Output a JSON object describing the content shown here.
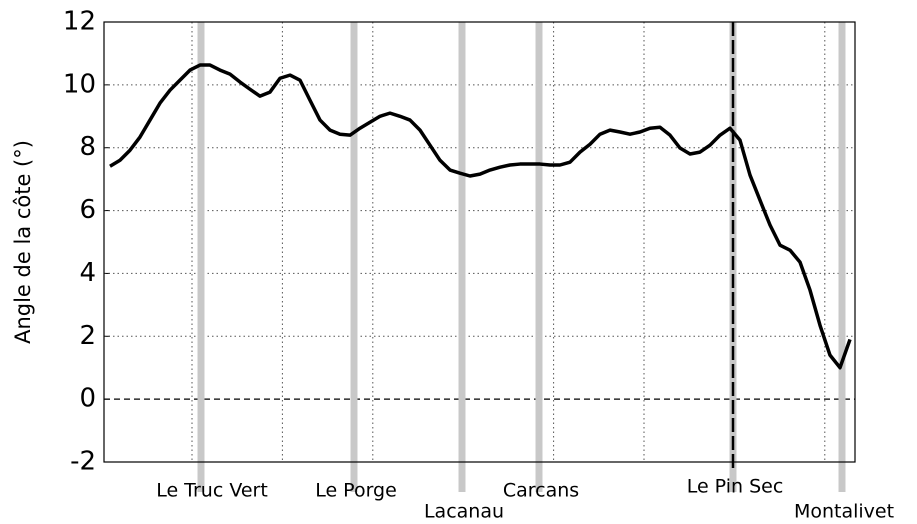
{
  "chart_data": {
    "type": "line",
    "y_label": "Angle de la côte (°)",
    "ylim": [
      -2,
      12
    ],
    "yticks": [
      -2,
      0,
      2,
      4,
      6,
      8,
      10,
      12
    ],
    "grid": true,
    "color": "#000000",
    "values": [
      7.41,
      7.6,
      7.92,
      8.34,
      8.88,
      9.42,
      9.83,
      10.15,
      10.47,
      10.63,
      10.63,
      10.47,
      10.34,
      10.09,
      9.86,
      9.64,
      9.77,
      10.21,
      10.31,
      10.15,
      9.51,
      8.88,
      8.56,
      8.43,
      8.4,
      8.62,
      8.81,
      9.0,
      9.1,
      9.0,
      8.88,
      8.56,
      8.08,
      7.6,
      7.29,
      7.19,
      7.1,
      7.16,
      7.29,
      7.38,
      7.45,
      7.48,
      7.48,
      7.48,
      7.45,
      7.45,
      7.54,
      7.86,
      8.11,
      8.43,
      8.56,
      8.5,
      8.43,
      8.5,
      8.62,
      8.65,
      8.4,
      7.99,
      7.8,
      7.86,
      8.08,
      8.4,
      8.62,
      8.24,
      7.13,
      6.33,
      5.54,
      4.9,
      4.74,
      4.36,
      3.47,
      2.35,
      1.4,
      1.0,
      1.9
    ],
    "markers": [
      {
        "label": "Le Truc Vert",
        "at": 9.1
      },
      {
        "label": "Le Porge",
        "at": 24.4
      },
      {
        "label": "Lacanau",
        "at": 35.2
      },
      {
        "label": "Carcans",
        "at": 42.9
      },
      {
        "label": "Le Pin Sec",
        "at": 62.3,
        "dashed": true
      },
      {
        "label": "Montalivet",
        "at": 73.2
      }
    ],
    "marker_color": "#c8c8c8"
  }
}
